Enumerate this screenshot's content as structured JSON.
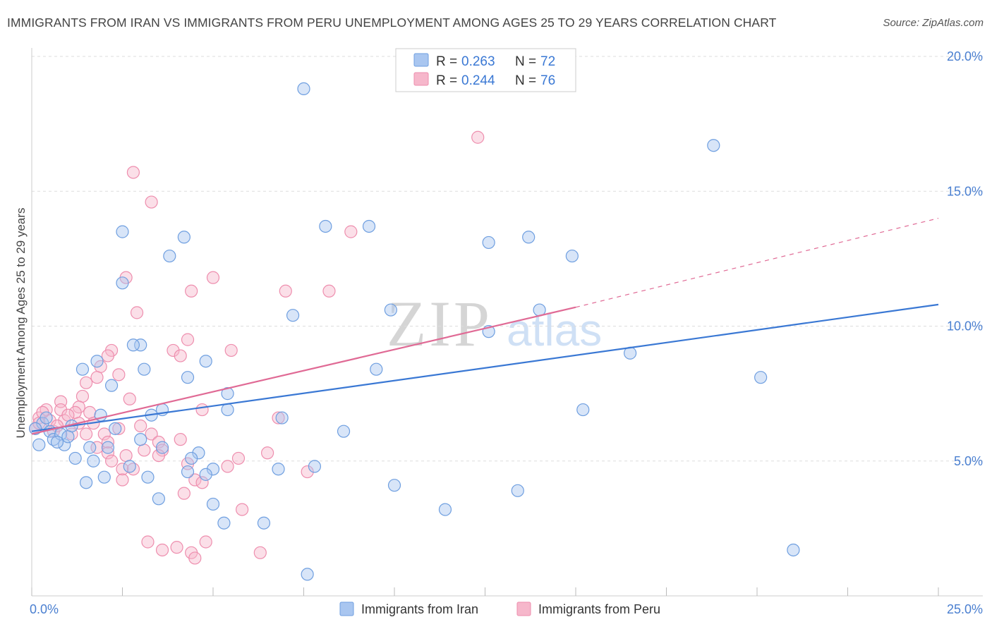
{
  "title": "IMMIGRANTS FROM IRAN VS IMMIGRANTS FROM PERU UNEMPLOYMENT AMONG AGES 25 TO 29 YEARS CORRELATION CHART",
  "source": "Source: ZipAtlas.com",
  "watermark": {
    "zip": "ZIP",
    "atlas": "atlas"
  },
  "colors": {
    "iran_fill": "#a9c6f0",
    "iran_stroke": "#6f9fe0",
    "iran_line": "#3a78d4",
    "peru_fill": "#f6b7cb",
    "peru_stroke": "#ee8eae",
    "peru_line": "#e06a95",
    "axis_text": "#4a7fd0",
    "grid": "#dddddd"
  },
  "stats_box": {
    "rows": [
      {
        "r_label": "R =",
        "r_value": "0.263",
        "n_label": "N =",
        "n_value": "72"
      },
      {
        "r_label": "R =",
        "r_value": "0.244",
        "n_label": "N =",
        "n_value": "76"
      }
    ]
  },
  "chart_data": {
    "type": "scatter",
    "title": "IMMIGRANTS FROM IRAN VS IMMIGRANTS FROM PERU UNEMPLOYMENT AMONG AGES 25 TO 29 YEARS CORRELATION CHART",
    "xlabel": "",
    "ylabel": "Unemployment Among Ages 25 to 29 years",
    "xlim": [
      0,
      25
    ],
    "ylim": [
      0,
      20
    ],
    "x_tick_labels": [
      {
        "value": 0,
        "label": "0.0%"
      },
      {
        "value": 25,
        "label": "25.0%"
      }
    ],
    "y_tick_labels": [
      {
        "value": 5,
        "label": "5.0%"
      },
      {
        "value": 10,
        "label": "10.0%"
      },
      {
        "value": 15,
        "label": "15.0%"
      },
      {
        "value": 20,
        "label": "20.0%"
      }
    ],
    "legend": [
      "Immigrants from Iran",
      "Immigrants from Peru"
    ],
    "series": [
      {
        "name": "Immigrants from Iran",
        "r": 0.263,
        "n": 72,
        "trend": {
          "x": [
            0,
            25
          ],
          "y": [
            6.1,
            10.8
          ]
        },
        "points": [
          [
            7.5,
            18.8
          ],
          [
            18.8,
            16.7
          ],
          [
            2.5,
            13.5
          ],
          [
            8.1,
            13.7
          ],
          [
            9.3,
            13.7
          ],
          [
            12.6,
            13.1
          ],
          [
            13.7,
            13.3
          ],
          [
            14.9,
            12.6
          ],
          [
            4.2,
            13.3
          ],
          [
            3.8,
            12.6
          ],
          [
            2.5,
            11.6
          ],
          [
            7.2,
            10.4
          ],
          [
            9.9,
            10.6
          ],
          [
            14.0,
            10.6
          ],
          [
            12.6,
            9.8
          ],
          [
            16.5,
            9.0
          ],
          [
            3.0,
            9.3
          ],
          [
            2.8,
            9.3
          ],
          [
            3.1,
            8.4
          ],
          [
            4.8,
            8.7
          ],
          [
            4.3,
            8.1
          ],
          [
            1.8,
            8.7
          ],
          [
            1.4,
            8.4
          ],
          [
            2.2,
            7.8
          ],
          [
            9.5,
            8.4
          ],
          [
            20.1,
            8.1
          ],
          [
            5.4,
            7.5
          ],
          [
            15.2,
            6.9
          ],
          [
            5.4,
            6.9
          ],
          [
            3.6,
            6.9
          ],
          [
            1.9,
            6.7
          ],
          [
            3.3,
            6.7
          ],
          [
            6.9,
            6.6
          ],
          [
            8.6,
            6.1
          ],
          [
            0.3,
            6.4
          ],
          [
            0.5,
            6.1
          ],
          [
            1.1,
            6.3
          ],
          [
            2.3,
            6.2
          ],
          [
            3.0,
            5.8
          ],
          [
            0.6,
            5.8
          ],
          [
            0.2,
            5.6
          ],
          [
            0.9,
            5.6
          ],
          [
            1.6,
            5.5
          ],
          [
            2.1,
            5.5
          ],
          [
            3.6,
            5.5
          ],
          [
            4.6,
            5.3
          ],
          [
            1.2,
            5.1
          ],
          [
            1.7,
            5.0
          ],
          [
            4.4,
            5.1
          ],
          [
            2.7,
            4.8
          ],
          [
            4.3,
            4.6
          ],
          [
            5.0,
            4.7
          ],
          [
            6.8,
            4.7
          ],
          [
            7.8,
            4.8
          ],
          [
            2.0,
            4.4
          ],
          [
            3.2,
            4.4
          ],
          [
            4.8,
            4.5
          ],
          [
            1.5,
            4.2
          ],
          [
            10.0,
            4.1
          ],
          [
            13.4,
            3.9
          ],
          [
            3.5,
            3.6
          ],
          [
            5.0,
            3.4
          ],
          [
            11.4,
            3.2
          ],
          [
            5.3,
            2.7
          ],
          [
            6.4,
            2.7
          ],
          [
            21.0,
            1.7
          ],
          [
            7.6,
            0.8
          ],
          [
            0.8,
            6.0
          ],
          [
            0.4,
            6.6
          ],
          [
            1.0,
            5.9
          ],
          [
            0.1,
            6.2
          ],
          [
            0.7,
            5.7
          ]
        ]
      },
      {
        "name": "Immigrants from Peru",
        "r": 0.244,
        "n": 76,
        "trend": {
          "x": [
            0,
            15
          ],
          "y": [
            6.0,
            10.7
          ]
        },
        "trend_dashed": {
          "x": [
            15,
            25
          ],
          "y": [
            10.7,
            14.0
          ]
        },
        "points": [
          [
            12.3,
            17.0
          ],
          [
            2.8,
            15.7
          ],
          [
            3.3,
            14.6
          ],
          [
            8.8,
            13.5
          ],
          [
            2.6,
            11.8
          ],
          [
            5.0,
            11.8
          ],
          [
            4.4,
            11.3
          ],
          [
            7.0,
            11.3
          ],
          [
            8.2,
            11.3
          ],
          [
            2.9,
            10.5
          ],
          [
            4.3,
            9.5
          ],
          [
            3.9,
            9.1
          ],
          [
            5.5,
            9.1
          ],
          [
            2.2,
            9.1
          ],
          [
            2.1,
            8.9
          ],
          [
            4.1,
            8.9
          ],
          [
            1.9,
            8.5
          ],
          [
            2.4,
            8.2
          ],
          [
            1.8,
            8.1
          ],
          [
            1.5,
            7.9
          ],
          [
            1.4,
            7.4
          ],
          [
            2.7,
            7.3
          ],
          [
            0.8,
            7.2
          ],
          [
            1.3,
            7.0
          ],
          [
            0.4,
            6.9
          ],
          [
            0.8,
            6.9
          ],
          [
            1.2,
            6.8
          ],
          [
            1.6,
            6.8
          ],
          [
            4.7,
            6.9
          ],
          [
            6.8,
            6.6
          ],
          [
            0.2,
            6.6
          ],
          [
            0.5,
            6.5
          ],
          [
            0.9,
            6.5
          ],
          [
            1.3,
            6.4
          ],
          [
            1.7,
            6.4
          ],
          [
            2.4,
            6.2
          ],
          [
            3.0,
            6.3
          ],
          [
            0.1,
            6.2
          ],
          [
            0.6,
            6.1
          ],
          [
            1.1,
            6.0
          ],
          [
            1.5,
            6.0
          ],
          [
            2.0,
            6.0
          ],
          [
            3.3,
            6.0
          ],
          [
            2.1,
            5.7
          ],
          [
            3.5,
            5.7
          ],
          [
            4.1,
            5.8
          ],
          [
            1.8,
            5.5
          ],
          [
            3.1,
            5.4
          ],
          [
            3.6,
            5.4
          ],
          [
            2.1,
            5.3
          ],
          [
            2.6,
            5.2
          ],
          [
            3.5,
            5.2
          ],
          [
            5.7,
            5.1
          ],
          [
            2.2,
            5.0
          ],
          [
            4.3,
            4.9
          ],
          [
            5.4,
            4.8
          ],
          [
            2.5,
            4.7
          ],
          [
            2.8,
            4.7
          ],
          [
            7.6,
            4.6
          ],
          [
            4.5,
            4.3
          ],
          [
            2.5,
            4.3
          ],
          [
            4.7,
            4.2
          ],
          [
            4.2,
            3.8
          ],
          [
            5.8,
            3.2
          ],
          [
            3.2,
            2.0
          ],
          [
            4.8,
            2.0
          ],
          [
            3.6,
            1.7
          ],
          [
            4.0,
            1.8
          ],
          [
            4.4,
            1.6
          ],
          [
            6.3,
            1.6
          ],
          [
            4.5,
            1.4
          ],
          [
            0.3,
            6.8
          ],
          [
            0.7,
            6.3
          ],
          [
            1.0,
            6.7
          ],
          [
            0.2,
            6.4
          ],
          [
            6.5,
            5.3
          ]
        ]
      }
    ]
  }
}
